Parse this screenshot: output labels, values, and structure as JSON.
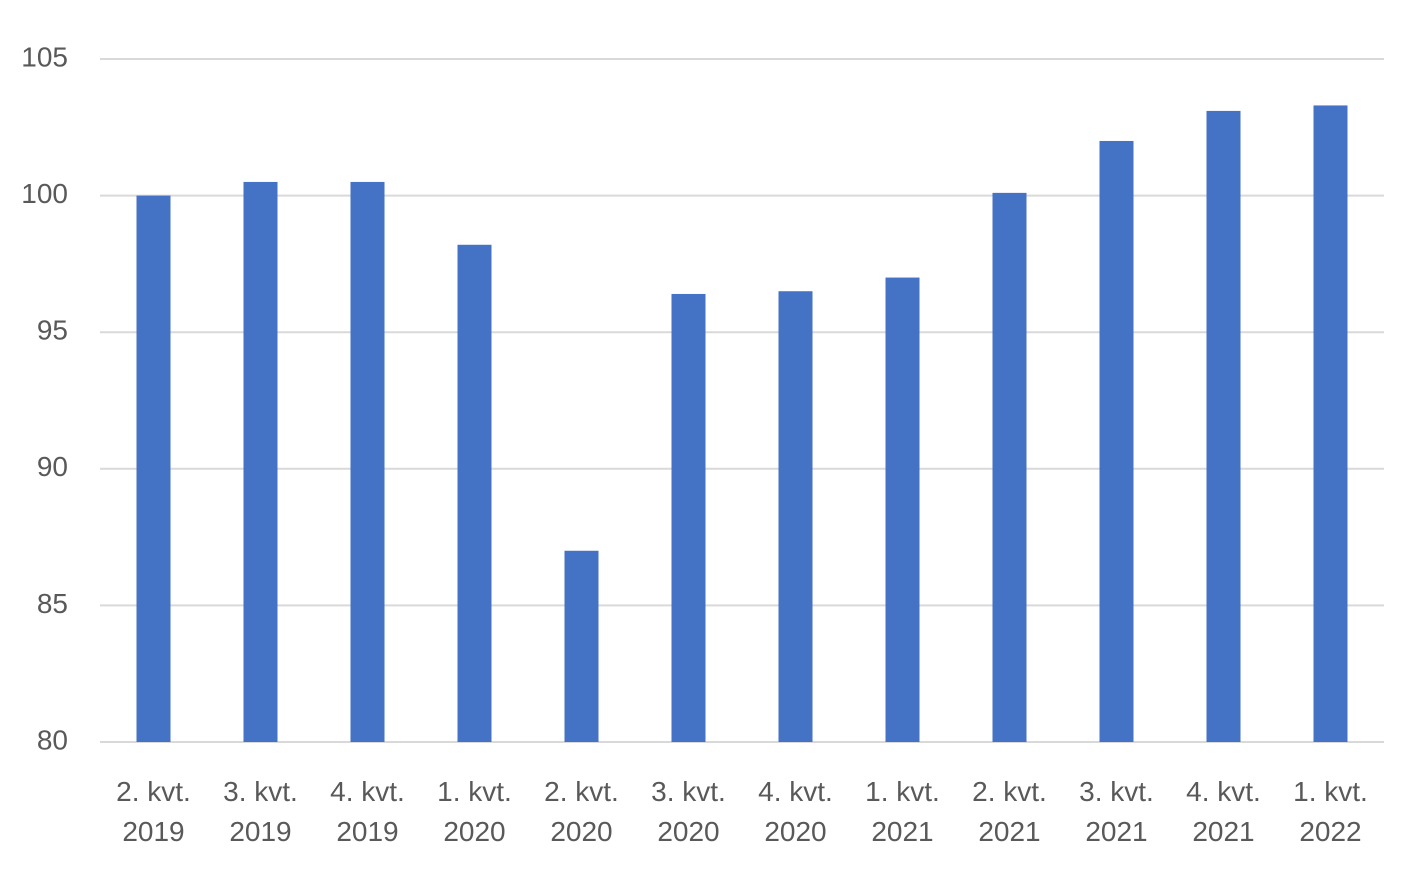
{
  "chart_data": {
    "type": "bar",
    "categories": [
      "2. kvt. 2019",
      "3. kvt. 2019",
      "4. kvt. 2019",
      "1. kvt. 2020",
      "2. kvt. 2020",
      "3. kvt. 2020",
      "4. kvt. 2020",
      "1. kvt. 2021",
      "2. kvt. 2021",
      "3. kvt. 2021",
      "4. kvt. 2021",
      "1. kvt. 2022"
    ],
    "values": [
      100.0,
      100.5,
      100.5,
      98.2,
      87.0,
      96.4,
      96.5,
      97.0,
      100.1,
      102.0,
      103.1,
      103.3
    ],
    "color": "#4472c4",
    "ylim": [
      80,
      105
    ],
    "yticks": [
      80,
      85,
      90,
      95,
      100,
      105
    ],
    "grid": true
  }
}
